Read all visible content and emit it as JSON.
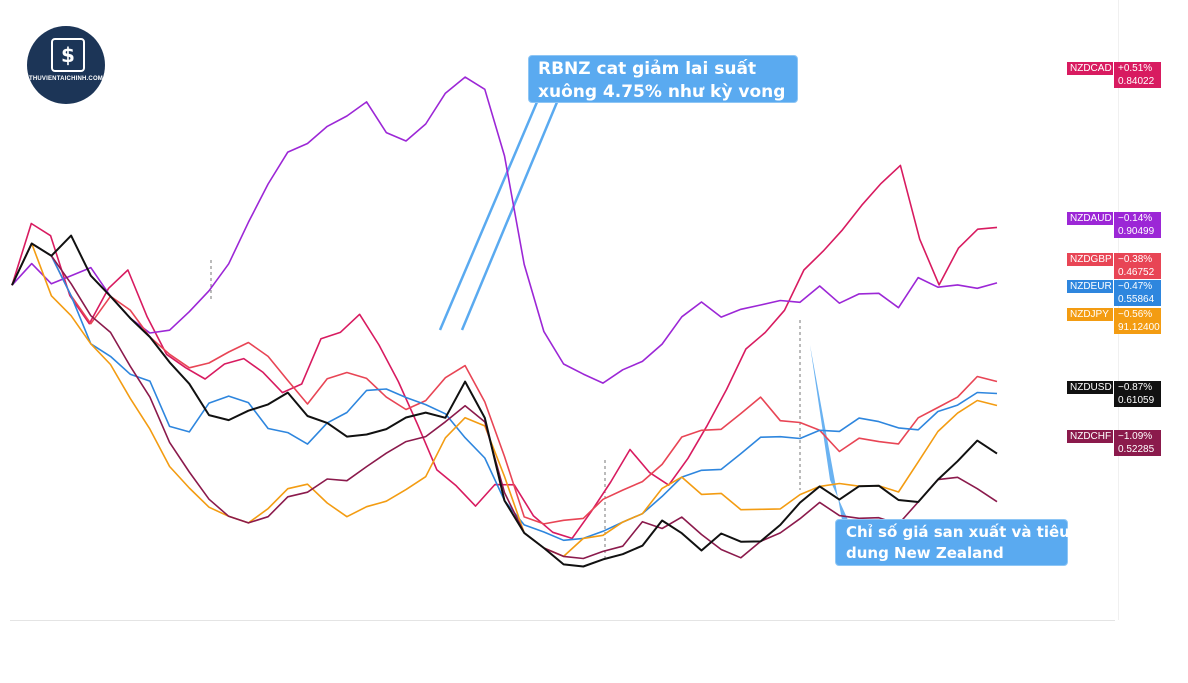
{
  "logo": {
    "mark": "$",
    "text": "THUVIENTAICHINH.COM"
  },
  "annotations": {
    "rbnz": [
      "RBNZ cat giảm lai suất",
      "xuông 4.75% như kỳ vong"
    ],
    "cpi": [
      "Chỉ số giá san xuất và tiêu",
      "dung New Zealand"
    ]
  },
  "chart_data": {
    "type": "line",
    "title": "",
    "xlabel": "",
    "ylabel": "",
    "grid": false,
    "legend": "right",
    "series": [
      {
        "name": "NZDCAD",
        "change": "+0.51%",
        "value": "0.84022",
        "color": "#d81b60",
        "points": [
          0,
          1.5,
          1.0,
          -0.5,
          -1.0,
          -0.3,
          0.2,
          -1.0,
          -1.8,
          -2.2,
          -2.4,
          -2.0,
          -1.9,
          -2.2,
          -2.8,
          -2.5,
          -1.5,
          -1.2,
          -0.8,
          -1.5,
          -2.5,
          -3.5,
          -4.8,
          -5.2,
          -5.6,
          -5.2,
          -5.0,
          -5.8,
          -6.2,
          -6.5,
          -5.8,
          -5.0,
          -4.2,
          -4.8,
          -5.2,
          -4.5,
          -3.5,
          -2.6,
          -1.8,
          -1.2,
          -0.8,
          0.2,
          0.8,
          1.2,
          2.0,
          2.5,
          2.8,
          1.0,
          0.0,
          0.8,
          1.2,
          1.4
        ]
      },
      {
        "name": "NZDAUD",
        "change": "−0.14%",
        "value": "0.90499",
        "color": "#9c27d6",
        "points": [
          0,
          0.5,
          -0.2,
          0.0,
          0.4,
          -0.5,
          -1.0,
          -1.4,
          -1.2,
          -0.8,
          -0.2,
          0.5,
          1.5,
          2.5,
          3.2,
          3.5,
          3.8,
          4.2,
          4.5,
          3.8,
          3.5,
          4.0,
          4.6,
          5.0,
          4.8,
          3.0,
          0.5,
          -1.2,
          -2.0,
          -2.4,
          -2.6,
          -2.2,
          -2.0,
          -1.6,
          -1.0,
          -0.6,
          -0.8,
          -0.6,
          -0.7,
          -0.4,
          -0.6,
          -0.2,
          -0.5,
          -0.4,
          -0.2,
          -0.6,
          0.0,
          -0.2,
          0.0,
          -0.2,
          -0.14
        ]
      },
      {
        "name": "NZDGBP",
        "change": "−0.38%",
        "value": "0.46752",
        "color": "#e84555",
        "points": [
          0,
          1.0,
          0.5,
          -0.5,
          -1.0,
          -0.5,
          -0.8,
          -1.5,
          -1.8,
          -2.2,
          -2.0,
          -1.7,
          -1.5,
          -1.8,
          -2.5,
          -3.0,
          -2.5,
          -2.2,
          -2.4,
          -2.8,
          -3.2,
          -2.9,
          -2.5,
          -2.2,
          -3.0,
          -4.5,
          -5.8,
          -6.0,
          -5.9,
          -6.0,
          -5.5,
          -5.2,
          -5.0,
          -4.6,
          -4.0,
          -3.8,
          -3.6,
          -3.2,
          -3.0,
          -3.4,
          -3.6,
          -3.8,
          -4.2,
          -4.0,
          -3.9,
          -4.0,
          -3.5,
          -3.2,
          -2.8,
          -2.4,
          -2.6
        ]
      },
      {
        "name": "NZDEUR",
        "change": "−0.47%",
        "value": "0.55864",
        "color": "#2e86de",
        "points": [
          0,
          1.0,
          0.5,
          -0.5,
          -1.5,
          -2.0,
          -2.4,
          -2.6,
          -3.6,
          -3.8,
          -3.0,
          -2.8,
          -3.0,
          -3.6,
          -3.8,
          -4.0,
          -3.6,
          -3.2,
          -2.7,
          -2.6,
          -2.9,
          -3.0,
          -3.4,
          -4.0,
          -4.4,
          -5.6,
          -6.0,
          -6.2,
          -6.4,
          -6.5,
          -6.3,
          -6.0,
          -5.8,
          -5.4,
          -5.0,
          -4.8,
          -4.6,
          -4.2,
          -4.0,
          -3.8,
          -4.0,
          -3.8,
          -3.7,
          -3.5,
          -3.4,
          -3.6,
          -3.8,
          -3.3,
          -3.0,
          -2.8,
          -2.9
        ]
      },
      {
        "name": "NZDJPY",
        "change": "−0.56%",
        "value": "91.12400",
        "color": "#f39c12",
        "points": [
          0,
          1.0,
          -0.5,
          -1.0,
          -1.5,
          -2.2,
          -3.0,
          -3.8,
          -4.6,
          -5.2,
          -5.6,
          -5.8,
          -6.0,
          -5.6,
          -5.2,
          -5.0,
          -5.6,
          -5.8,
          -5.6,
          -5.4,
          -5.2,
          -4.8,
          -4.0,
          -3.5,
          -3.6,
          -5.0,
          -6.2,
          -6.6,
          -6.8,
          -6.5,
          -6.4,
          -6.0,
          -5.8,
          -5.2,
          -5.0,
          -5.4,
          -5.2,
          -5.6,
          -5.8,
          -5.6,
          -5.4,
          -5.2,
          -5.0,
          -5.2,
          -5.0,
          -5.2,
          -4.6,
          -3.8,
          -3.2,
          -3.0,
          -3.2
        ]
      },
      {
        "name": "NZDUSD",
        "change": "−0.87%",
        "value": "0.61059",
        "color": "#111111",
        "points": [
          0,
          1.0,
          0.5,
          1.0,
          0.2,
          -0.5,
          -1.0,
          -1.5,
          -2.0,
          -2.6,
          -3.3,
          -3.4,
          -3.2,
          -3.0,
          -2.8,
          -3.3,
          -3.6,
          -3.8,
          -3.8,
          -3.6,
          -3.4,
          -3.2,
          -3.5,
          -2.6,
          -3.4,
          -5.6,
          -6.2,
          -6.6,
          -7.0,
          -7.2,
          -7.0,
          -6.8,
          -6.6,
          -6.0,
          -6.4,
          -6.8,
          -6.2,
          -6.4,
          -6.6,
          -6.0,
          -5.6,
          -5.2,
          -5.4,
          -5.2,
          -5.0,
          -5.4,
          -5.6,
          -5.0,
          -4.4,
          -4.0,
          -4.4
        ]
      },
      {
        "name": "NZDCHF",
        "change": "−1.09%",
        "value": "0.52285",
        "color": "#8b1a4c",
        "points": [
          0,
          1.0,
          0.5,
          -0.2,
          -0.8,
          -1.4,
          -2.2,
          -3.0,
          -4.0,
          -4.8,
          -5.4,
          -5.8,
          -6.0,
          -5.8,
          -5.4,
          -5.2,
          -5.0,
          -4.9,
          -4.6,
          -4.2,
          -4.0,
          -3.8,
          -3.6,
          -3.2,
          -3.5,
          -5.4,
          -6.2,
          -6.6,
          -6.8,
          -7.0,
          -6.8,
          -6.6,
          -6.0,
          -6.2,
          -6.0,
          -6.4,
          -6.6,
          -6.8,
          -6.6,
          -6.2,
          -6.0,
          -5.6,
          -5.8,
          -6.0,
          -5.8,
          -6.0,
          -5.6,
          -5.0,
          -4.8,
          -5.2,
          -5.6
        ]
      }
    ]
  }
}
